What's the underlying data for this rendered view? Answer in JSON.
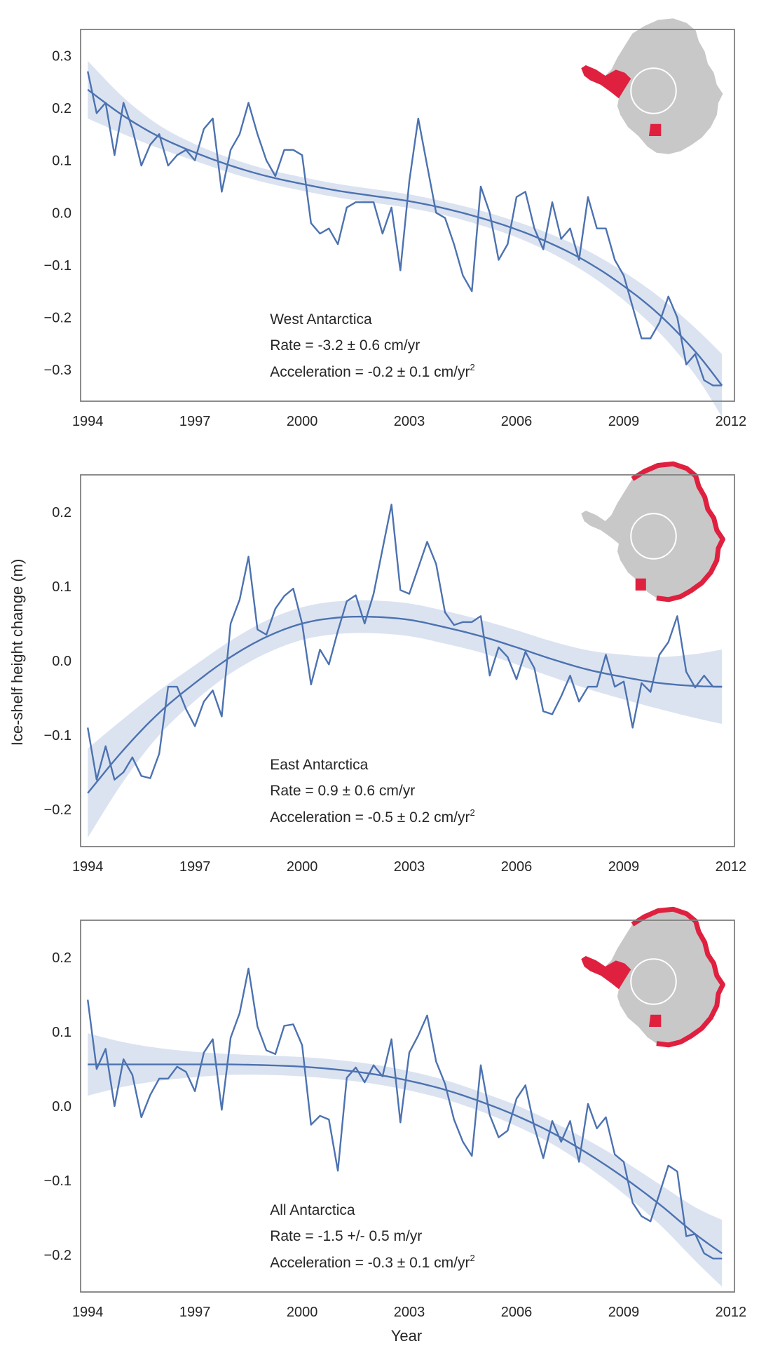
{
  "figure": {
    "ylabel": "Ice-shelf height change (m)",
    "xlabel": "Year"
  },
  "colors": {
    "line": "#4c72b0",
    "band": "#dbe3f1",
    "frame": "#808080",
    "map_land": "#c8c8c8",
    "map_highlight": "#e0203f",
    "map_hole": "#ffffff"
  },
  "chart_data": [
    {
      "type": "line",
      "region": "West Antarctica",
      "annotation": {
        "name": "West Antarctica",
        "rate_label": "Rate = -3.2",
        "rate_pm": "±",
        "rate_value": "0.6 cm/yr",
        "acc_label": "Acceleration = -0.2",
        "acc_pm": "±",
        "acc_value": "0.1 cm/yr",
        "acc_exp": "2"
      },
      "xlim": [
        1993.8,
        2012.1
      ],
      "ylim": [
        -0.36,
        0.35
      ],
      "xticks": [
        1994,
        1997,
        2000,
        2003,
        2006,
        2009,
        2012
      ],
      "yticks": [
        -0.3,
        -0.2,
        -0.1,
        0.0,
        0.1,
        0.2,
        0.3
      ],
      "ytick_labels": [
        "−0.3",
        "−0.2",
        "−0.1",
        "0.0",
        "0.1",
        "0.2",
        "0.3"
      ],
      "grid": false,
      "map_highlight_region": "west",
      "series": [
        {
          "kind": "observed",
          "x": [
            1994.0,
            1994.25,
            1994.5,
            1994.75,
            1995.0,
            1995.25,
            1995.5,
            1995.75,
            1996.0,
            1996.25,
            1996.5,
            1996.75,
            1997.0,
            1997.25,
            1997.5,
            1997.75,
            1998.0,
            1998.25,
            1998.5,
            1998.75,
            1999.0,
            1999.25,
            1999.5,
            1999.75,
            2000.0,
            2000.25,
            2000.5,
            2000.75,
            2001.0,
            2001.25,
            2001.5,
            2001.75,
            2002.0,
            2002.25,
            2002.5,
            2002.75,
            2003.0,
            2003.25,
            2003.5,
            2003.75,
            2004.0,
            2004.25,
            2004.5,
            2004.75,
            2005.0,
            2005.25,
            2005.5,
            2005.75,
            2006.0,
            2006.25,
            2006.5,
            2006.75,
            2007.0,
            2007.25,
            2007.5,
            2007.75,
            2008.0,
            2008.25,
            2008.5,
            2008.75,
            2009.0,
            2009.25,
            2009.5,
            2009.75,
            2010.0,
            2010.25,
            2010.5,
            2010.75,
            2011.0,
            2011.25,
            2011.5,
            2011.75
          ],
          "y": [
            0.27,
            0.19,
            0.21,
            0.11,
            0.21,
            0.16,
            0.09,
            0.13,
            0.15,
            0.09,
            0.11,
            0.12,
            0.1,
            0.16,
            0.18,
            0.04,
            0.12,
            0.15,
            0.21,
            0.15,
            0.1,
            0.07,
            0.12,
            0.12,
            0.11,
            -0.02,
            -0.04,
            -0.03,
            -0.06,
            0.01,
            0.02,
            0.02,
            0.02,
            -0.04,
            0.01,
            -0.11,
            0.06,
            0.18,
            0.09,
            0.0,
            -0.01,
            -0.06,
            -0.12,
            -0.15,
            0.05,
            0.0,
            -0.09,
            -0.06,
            0.03,
            0.04,
            -0.03,
            -0.07,
            0.02,
            -0.05,
            -0.03,
            -0.09,
            0.03,
            -0.03,
            -0.03,
            -0.09,
            -0.12,
            -0.18,
            -0.24,
            -0.24,
            -0.21,
            -0.16,
            -0.2,
            -0.29,
            -0.27,
            -0.32,
            -0.33,
            -0.33
          ]
        },
        {
          "kind": "fit",
          "x": [
            1994.0,
            1995.0,
            1996.0,
            1997.0,
            1998.0,
            1999.0,
            2000.0,
            2001.0,
            2002.0,
            2003.0,
            2004.0,
            2005.0,
            2006.0,
            2007.0,
            2008.0,
            2009.0,
            2010.0,
            2011.0,
            2011.75
          ],
          "y": [
            0.235,
            0.185,
            0.145,
            0.115,
            0.09,
            0.07,
            0.055,
            0.042,
            0.032,
            0.022,
            0.008,
            -0.01,
            -0.032,
            -0.06,
            -0.095,
            -0.14,
            -0.195,
            -0.265,
            -0.33
          ],
          "ci": [
            0.055,
            0.035,
            0.022,
            0.016,
            0.014,
            0.013,
            0.013,
            0.013,
            0.013,
            0.013,
            0.013,
            0.014,
            0.015,
            0.018,
            0.022,
            0.027,
            0.034,
            0.045,
            0.06
          ]
        }
      ]
    },
    {
      "type": "line",
      "region": "East Antarctica",
      "annotation": {
        "name": "East Antarctica",
        "rate_label": "Rate = 0.9",
        "rate_pm": "±",
        "rate_value": "0.6 cm/yr",
        "acc_label": "Acceleration = -0.5",
        "acc_pm": "±",
        "acc_value": "0.2 cm/yr",
        "acc_exp": "2"
      },
      "xlim": [
        1993.8,
        2012.1
      ],
      "ylim": [
        -0.25,
        0.25
      ],
      "xticks": [
        1994,
        1997,
        2000,
        2003,
        2006,
        2009,
        2012
      ],
      "yticks": [
        -0.2,
        -0.1,
        0.0,
        0.1,
        0.2
      ],
      "ytick_labels": [
        "−0.2",
        "−0.1",
        "0.0",
        "0.1",
        "0.2"
      ],
      "grid": false,
      "map_highlight_region": "east",
      "series": [
        {
          "kind": "observed",
          "x": [
            1994.0,
            1994.25,
            1994.5,
            1994.75,
            1995.0,
            1995.25,
            1995.5,
            1995.75,
            1996.0,
            1996.25,
            1996.5,
            1996.75,
            1997.0,
            1997.25,
            1997.5,
            1997.75,
            1998.0,
            1998.25,
            1998.5,
            1998.75,
            1999.0,
            1999.25,
            1999.5,
            1999.75,
            2000.0,
            2000.25,
            2000.5,
            2000.75,
            2001.0,
            2001.25,
            2001.5,
            2001.75,
            2002.0,
            2002.25,
            2002.5,
            2002.75,
            2003.0,
            2003.25,
            2003.5,
            2003.75,
            2004.0,
            2004.25,
            2004.5,
            2004.75,
            2005.0,
            2005.25,
            2005.5,
            2005.75,
            2006.0,
            2006.25,
            2006.5,
            2006.75,
            2007.0,
            2007.25,
            2007.5,
            2007.75,
            2008.0,
            2008.25,
            2008.5,
            2008.75,
            2009.0,
            2009.25,
            2009.5,
            2009.75,
            2010.0,
            2010.25,
            2010.5,
            2010.75,
            2011.0,
            2011.25,
            2011.5,
            2011.75
          ],
          "y": [
            -0.09,
            -0.16,
            -0.115,
            -0.16,
            -0.15,
            -0.13,
            -0.155,
            -0.158,
            -0.125,
            -0.035,
            -0.035,
            -0.065,
            -0.088,
            -0.055,
            -0.04,
            -0.075,
            0.05,
            0.082,
            0.14,
            0.042,
            0.035,
            0.07,
            0.087,
            0.097,
            0.05,
            -0.032,
            0.015,
            -0.005,
            0.04,
            0.08,
            0.088,
            0.05,
            0.09,
            0.15,
            0.21,
            0.095,
            0.09,
            0.125,
            0.16,
            0.13,
            0.065,
            0.048,
            0.052,
            0.052,
            0.06,
            -0.02,
            0.018,
            0.005,
            -0.025,
            0.012,
            -0.01,
            -0.068,
            -0.072,
            -0.048,
            -0.02,
            -0.055,
            -0.035,
            -0.035,
            0.008,
            -0.035,
            -0.028,
            -0.09,
            -0.03,
            -0.042,
            0.008,
            0.025,
            0.06,
            -0.015,
            -0.036,
            -0.02,
            -0.035,
            -0.035
          ]
        },
        {
          "kind": "fit",
          "x": [
            1994.0,
            1995.0,
            1996.0,
            1997.0,
            1998.0,
            1999.0,
            2000.0,
            2001.0,
            2002.0,
            2003.0,
            2004.0,
            2005.0,
            2006.0,
            2007.0,
            2008.0,
            2009.0,
            2010.0,
            2011.0,
            2011.75
          ],
          "y": [
            -0.178,
            -0.12,
            -0.07,
            -0.03,
            0.005,
            0.032,
            0.05,
            0.058,
            0.059,
            0.055,
            0.045,
            0.033,
            0.018,
            0.002,
            -0.012,
            -0.022,
            -0.03,
            -0.034,
            -0.035
          ],
          "ci": [
            0.06,
            0.042,
            0.03,
            0.024,
            0.022,
            0.022,
            0.022,
            0.022,
            0.022,
            0.022,
            0.022,
            0.022,
            0.023,
            0.024,
            0.026,
            0.03,
            0.035,
            0.043,
            0.05
          ]
        }
      ]
    },
    {
      "type": "line",
      "region": "All Antarctica",
      "annotation": {
        "name": "All Antarctica",
        "rate_label": "Rate = -1.5 +/- 0.5 m/yr",
        "rate_pm": "",
        "rate_value": "",
        "acc_label": "Acceleration = -0.3",
        "acc_pm": "±",
        "acc_value": "0.1 cm/yr",
        "acc_exp": "2"
      },
      "xlim": [
        1993.8,
        2012.1
      ],
      "ylim": [
        -0.25,
        0.25
      ],
      "xticks": [
        1994,
        1997,
        2000,
        2003,
        2006,
        2009,
        2012
      ],
      "yticks": [
        -0.2,
        -0.1,
        0.0,
        0.1,
        0.2
      ],
      "ytick_labels": [
        "−0.2",
        "−0.1",
        "0.0",
        "0.1",
        "0.2"
      ],
      "grid": false,
      "map_highlight_region": "all",
      "series": [
        {
          "kind": "observed",
          "x": [
            1994.0,
            1994.25,
            1994.5,
            1994.75,
            1995.0,
            1995.25,
            1995.5,
            1995.75,
            1996.0,
            1996.25,
            1996.5,
            1996.75,
            1997.0,
            1997.25,
            1997.5,
            1997.75,
            1998.0,
            1998.25,
            1998.5,
            1998.75,
            1999.0,
            1999.25,
            1999.5,
            1999.75,
            2000.0,
            2000.25,
            2000.5,
            2000.75,
            2001.0,
            2001.25,
            2001.5,
            2001.75,
            2002.0,
            2002.25,
            2002.5,
            2002.75,
            2003.0,
            2003.25,
            2003.5,
            2003.75,
            2004.0,
            2004.25,
            2004.5,
            2004.75,
            2005.0,
            2005.25,
            2005.5,
            2005.75,
            2006.0,
            2006.25,
            2006.5,
            2006.75,
            2007.0,
            2007.25,
            2007.5,
            2007.75,
            2008.0,
            2008.25,
            2008.5,
            2008.75,
            2009.0,
            2009.25,
            2009.5,
            2009.75,
            2010.0,
            2010.25,
            2010.5,
            2010.75,
            2011.0,
            2011.25,
            2011.5,
            2011.75
          ],
          "y": [
            0.143,
            0.05,
            0.077,
            0.0,
            0.063,
            0.042,
            -0.015,
            0.015,
            0.037,
            0.037,
            0.053,
            0.046,
            0.02,
            0.072,
            0.09,
            -0.005,
            0.092,
            0.125,
            0.185,
            0.107,
            0.075,
            0.07,
            0.108,
            0.11,
            0.082,
            -0.025,
            -0.013,
            -0.018,
            -0.087,
            0.038,
            0.052,
            0.032,
            0.055,
            0.04,
            0.09,
            -0.022,
            0.072,
            0.095,
            0.122,
            0.06,
            0.03,
            -0.018,
            -0.048,
            -0.067,
            0.055,
            -0.012,
            -0.042,
            -0.033,
            0.01,
            0.028,
            -0.028,
            -0.07,
            -0.02,
            -0.048,
            -0.02,
            -0.075,
            0.003,
            -0.03,
            -0.015,
            -0.065,
            -0.075,
            -0.13,
            -0.148,
            -0.155,
            -0.118,
            -0.08,
            -0.088,
            -0.175,
            -0.172,
            -0.198,
            -0.205,
            -0.205
          ]
        },
        {
          "kind": "fit",
          "x": [
            1994.0,
            1995.0,
            1996.0,
            1997.0,
            1998.0,
            1999.0,
            2000.0,
            2001.0,
            2002.0,
            2003.0,
            2004.0,
            2005.0,
            2006.0,
            2007.0,
            2008.0,
            2009.0,
            2010.0,
            2011.0,
            2011.75
          ],
          "y": [
            0.056,
            0.056,
            0.056,
            0.056,
            0.056,
            0.055,
            0.053,
            0.049,
            0.043,
            0.034,
            0.022,
            0.006,
            -0.013,
            -0.036,
            -0.064,
            -0.096,
            -0.132,
            -0.172,
            -0.198
          ],
          "ci": [
            0.042,
            0.03,
            0.022,
            0.017,
            0.014,
            0.013,
            0.013,
            0.013,
            0.013,
            0.013,
            0.013,
            0.013,
            0.014,
            0.015,
            0.018,
            0.022,
            0.027,
            0.036,
            0.045
          ]
        }
      ]
    }
  ]
}
